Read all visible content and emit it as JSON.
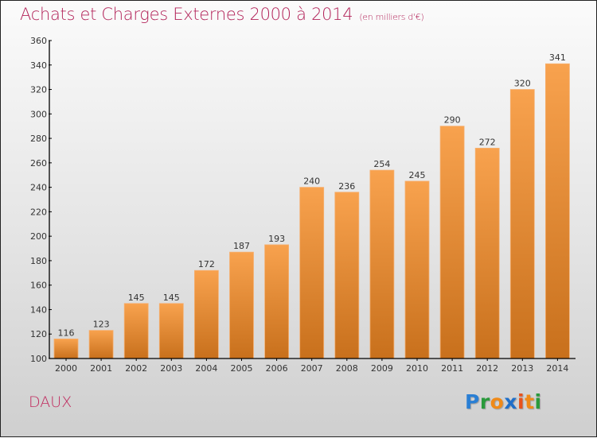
{
  "header": {
    "title": "Achats et Charges Externes 2000 à 2014",
    "unit": "(en milliers d'€)"
  },
  "footer": {
    "place": "DAUX",
    "logo": {
      "letters": [
        {
          "ch": "P",
          "color": "#2a7fd4"
        },
        {
          "ch": "r",
          "color": "#2a9a3c"
        },
        {
          "ch": "o",
          "color": "#f08a18"
        },
        {
          "ch": "x",
          "color": "#1f6fc9"
        },
        {
          "ch": "i",
          "color": "#e8521c"
        },
        {
          "ch": "t",
          "color": "#f08a18"
        },
        {
          "ch": "i",
          "color": "#2a9a3c"
        }
      ]
    }
  },
  "colors": {
    "bar_top": "#f8a24e",
    "bar_bottom": "#c8701c",
    "title": "#b3245a"
  },
  "chart_data": {
    "type": "bar",
    "title": "Achats et Charges Externes 2000 à 2014 (en milliers d'€)",
    "xlabel": "",
    "ylabel": "",
    "categories": [
      "2000",
      "2001",
      "2002",
      "2003",
      "2004",
      "2005",
      "2006",
      "2007",
      "2008",
      "2009",
      "2010",
      "2011",
      "2012",
      "2013",
      "2014"
    ],
    "values": [
      116,
      123,
      145,
      145,
      172,
      187,
      193,
      240,
      236,
      254,
      245,
      290,
      272,
      320,
      341
    ],
    "ylim": [
      100,
      360
    ],
    "yticks": [
      100,
      120,
      140,
      160,
      180,
      200,
      220,
      240,
      260,
      280,
      300,
      320,
      340,
      360
    ],
    "grid": false,
    "legend": "none",
    "data_labels": true
  }
}
